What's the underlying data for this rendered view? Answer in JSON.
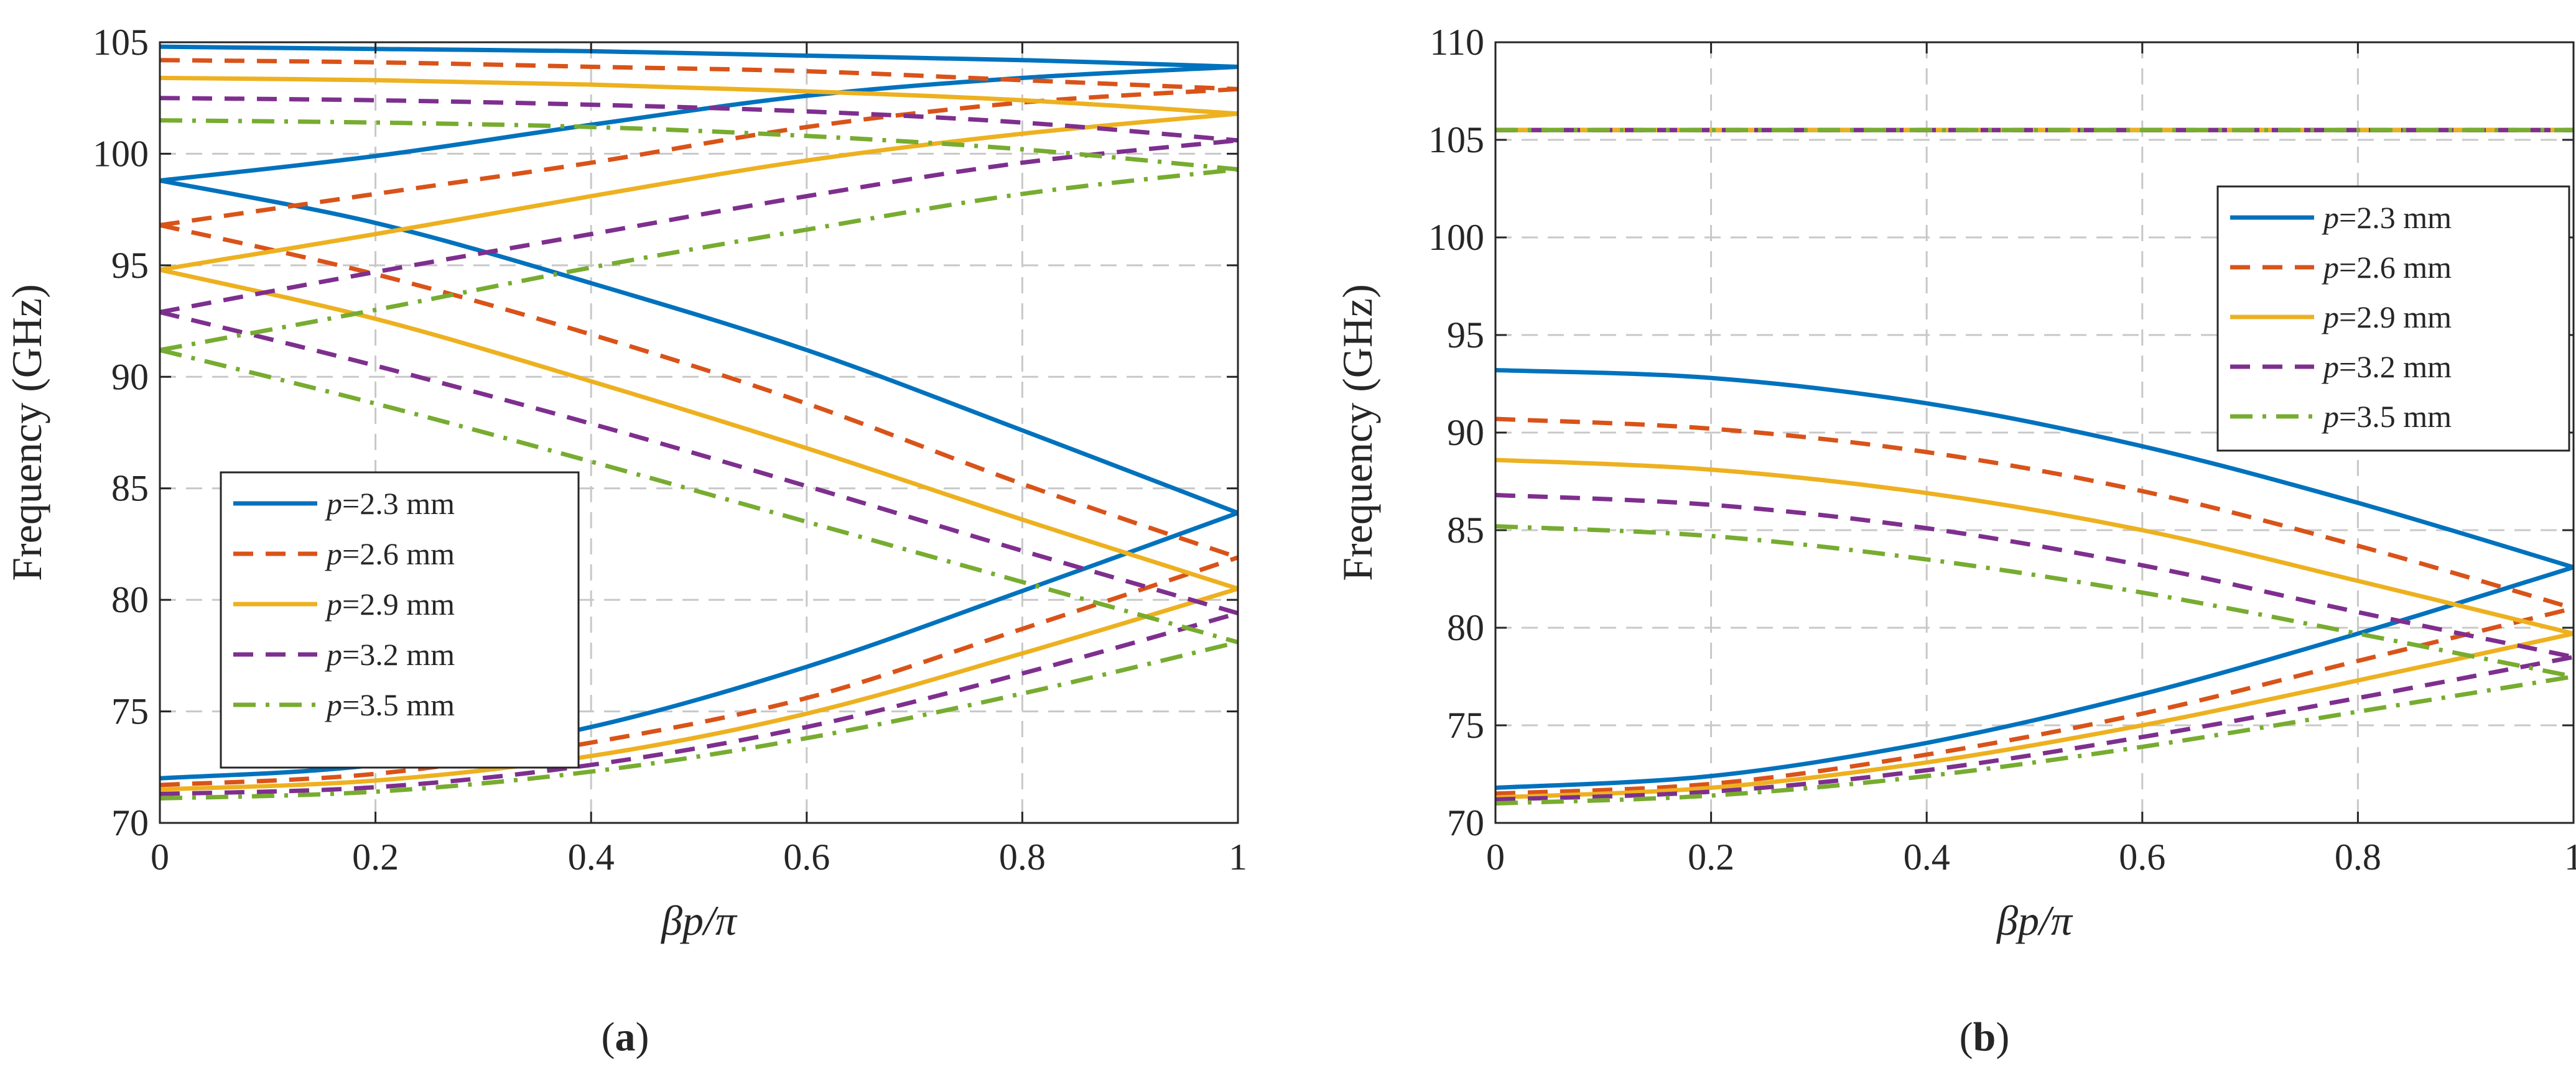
{
  "chart_data": [
    {
      "type": "line",
      "panel": "a",
      "caption": "(a)",
      "xlabel": "βp/π",
      "ylabel": "Frequency (GHz)",
      "xlim": [
        0,
        1
      ],
      "ylim": [
        70,
        105
      ],
      "xticks": [
        0,
        0.2,
        0.4,
        0.6,
        0.8,
        1
      ],
      "xtick_labels": [
        "0",
        "0.2",
        "0.4",
        "0.6",
        "0.8",
        "1"
      ],
      "yticks": [
        70,
        75,
        80,
        85,
        90,
        95,
        100,
        105
      ],
      "ytick_labels": [
        "70",
        "75",
        "80",
        "85",
        "90",
        "95",
        "100",
        "105"
      ],
      "grid": true,
      "legend_position": "lower-left",
      "series": [
        {
          "name": "p=2.3 mm",
          "p_label": "p",
          "value_label": "=2.3 mm",
          "color": "#0072BD",
          "style": "solid",
          "bands": [
            {
              "x": [
                0,
                0.2,
                0.4,
                0.6,
                0.8,
                1
              ],
              "y": [
                72.0,
                72.6,
                74.3,
                77.0,
                80.4,
                83.9
              ]
            },
            {
              "x": [
                0,
                0.2,
                0.4,
                0.6,
                0.8,
                1
              ],
              "y": [
                98.8,
                96.9,
                94.2,
                91.2,
                87.6,
                83.9
              ]
            },
            {
              "x": [
                0,
                0.2,
                0.4,
                0.6,
                0.8,
                1
              ],
              "y": [
                98.8,
                99.9,
                101.3,
                102.6,
                103.4,
                103.9
              ]
            },
            {
              "x": [
                0,
                0.2,
                0.4,
                0.6,
                0.8,
                1
              ],
              "y": [
                104.8,
                104.7,
                104.6,
                104.4,
                104.2,
                103.9
              ]
            }
          ]
        },
        {
          "name": "p=2.6 mm",
          "p_label": "p",
          "value_label": "=2.6 mm",
          "color": "#D95319",
          "style": "dashed",
          "bands": [
            {
              "x": [
                0,
                0.2,
                0.4,
                0.6,
                0.8,
                1
              ],
              "y": [
                71.7,
                72.2,
                73.6,
                75.6,
                78.7,
                81.9
              ]
            },
            {
              "x": [
                0,
                0.2,
                0.4,
                0.6,
                0.8,
                1
              ],
              "y": [
                96.8,
                94.6,
                91.9,
                88.8,
                85.2,
                81.9
              ]
            },
            {
              "x": [
                0,
                0.2,
                0.4,
                0.6,
                0.8,
                1
              ],
              "y": [
                96.8,
                98.2,
                99.6,
                101.2,
                102.3,
                102.9
              ]
            },
            {
              "x": [
                0,
                0.2,
                0.4,
                0.6,
                0.8,
                1
              ],
              "y": [
                104.2,
                104.1,
                103.9,
                103.7,
                103.3,
                102.9
              ]
            }
          ]
        },
        {
          "name": "p=2.9 mm",
          "p_label": "p",
          "value_label": "=2.9 mm",
          "color": "#EDB120",
          "style": "solid",
          "bands": [
            {
              "x": [
                0,
                0.2,
                0.4,
                0.6,
                0.8,
                1
              ],
              "y": [
                71.5,
                71.9,
                73.0,
                74.9,
                77.6,
                80.5
              ]
            },
            {
              "x": [
                0,
                0.2,
                0.4,
                0.6,
                0.8,
                1
              ],
              "y": [
                94.8,
                92.6,
                89.8,
                86.8,
                83.6,
                80.5
              ]
            },
            {
              "x": [
                0,
                0.2,
                0.4,
                0.6,
                0.8,
                1
              ],
              "y": [
                94.8,
                96.4,
                98.1,
                99.7,
                100.9,
                101.8
              ]
            },
            {
              "x": [
                0,
                0.2,
                0.4,
                0.6,
                0.8,
                1
              ],
              "y": [
                103.4,
                103.3,
                103.1,
                102.8,
                102.4,
                101.8
              ]
            }
          ]
        },
        {
          "name": "p=3.2 mm",
          "p_label": "p",
          "value_label": "=3.2 mm",
          "color": "#7E2F8E",
          "style": "dashed",
          "bands": [
            {
              "x": [
                0,
                0.2,
                0.4,
                0.6,
                0.8,
                1
              ],
              "y": [
                71.3,
                71.6,
                72.6,
                74.3,
                76.7,
                79.4
              ]
            },
            {
              "x": [
                0,
                0.2,
                0.4,
                0.6,
                0.8,
                1
              ],
              "y": [
                92.9,
                90.5,
                87.9,
                85.1,
                82.2,
                79.4
              ]
            },
            {
              "x": [
                0,
                0.2,
                0.4,
                0.6,
                0.8,
                1
              ],
              "y": [
                92.9,
                94.7,
                96.4,
                98.1,
                99.6,
                100.6
              ]
            },
            {
              "x": [
                0,
                0.2,
                0.4,
                0.6,
                0.8,
                1
              ],
              "y": [
                102.5,
                102.4,
                102.2,
                101.9,
                101.4,
                100.6
              ]
            }
          ]
        },
        {
          "name": "p=3.5 mm",
          "p_label": "p",
          "value_label": "=3.5 mm",
          "color": "#77AC30",
          "style": "dashdot",
          "bands": [
            {
              "x": [
                0,
                0.2,
                0.4,
                0.6,
                0.8,
                1
              ],
              "y": [
                71.1,
                71.4,
                72.3,
                73.8,
                75.8,
                78.1
              ]
            },
            {
              "x": [
                0,
                0.2,
                0.4,
                0.6,
                0.8,
                1
              ],
              "y": [
                91.2,
                88.8,
                86.2,
                83.5,
                80.8,
                78.1
              ]
            },
            {
              "x": [
                0,
                0.2,
                0.4,
                0.6,
                0.8,
                1
              ],
              "y": [
                91.2,
                93.0,
                94.9,
                96.6,
                98.2,
                99.3
              ]
            },
            {
              "x": [
                0,
                0.2,
                0.4,
                0.6,
                0.8,
                1
              ],
              "y": [
                101.5,
                101.4,
                101.2,
                100.8,
                100.2,
                99.3
              ]
            }
          ]
        }
      ]
    },
    {
      "type": "line",
      "panel": "b",
      "caption": "(b)",
      "xlabel": "βp/π",
      "ylabel": "Frequency (GHz)",
      "xlim": [
        0,
        1
      ],
      "ylim": [
        70,
        110
      ],
      "xticks": [
        0,
        0.2,
        0.4,
        0.6,
        0.8,
        1
      ],
      "xtick_labels": [
        "0",
        "0.2",
        "0.4",
        "0.6",
        "0.8",
        "1"
      ],
      "yticks": [
        70,
        75,
        80,
        85,
        90,
        95,
        100,
        105,
        110
      ],
      "ytick_labels": [
        "70",
        "75",
        "80",
        "85",
        "90",
        "95",
        "100",
        "105",
        "110"
      ],
      "grid": true,
      "legend_position": "upper-right",
      "series": [
        {
          "name": "p=2.3 mm",
          "p_label": "p",
          "value_label": "=2.3 mm",
          "color": "#0072BD",
          "style": "solid",
          "bands": [
            {
              "x": [
                0,
                0.2,
                0.4,
                0.6,
                0.8,
                1
              ],
              "y": [
                71.8,
                72.4,
                74.1,
                76.6,
                79.7,
                83.1
              ]
            },
            {
              "x": [
                0,
                0.2,
                0.4,
                0.6,
                0.8,
                1
              ],
              "y": [
                93.2,
                92.8,
                91.5,
                89.3,
                86.4,
                83.1
              ]
            },
            {
              "x": [
                0,
                1
              ],
              "y": [
                105.5,
                105.5
              ]
            }
          ]
        },
        {
          "name": "p=2.6 mm",
          "p_label": "p",
          "value_label": "=2.6 mm",
          "color": "#D95319",
          "style": "dashed",
          "bands": [
            {
              "x": [
                0,
                0.2,
                0.4,
                0.6,
                0.8,
                1
              ],
              "y": [
                71.5,
                72.0,
                73.5,
                75.6,
                78.3,
                81.0
              ]
            },
            {
              "x": [
                0,
                0.2,
                0.4,
                0.6,
                0.8,
                1
              ],
              "y": [
                90.7,
                90.2,
                89.0,
                87.0,
                84.2,
                81.0
              ]
            },
            {
              "x": [
                0,
                1
              ],
              "y": [
                105.5,
                105.5
              ]
            }
          ]
        },
        {
          "name": "p=2.9 mm",
          "p_label": "p",
          "value_label": "=2.9 mm",
          "color": "#EDB120",
          "style": "solid",
          "bands": [
            {
              "x": [
                0,
                0.2,
                0.4,
                0.6,
                0.8,
                1
              ],
              "y": [
                71.3,
                71.8,
                73.1,
                75.0,
                77.3,
                79.7
              ]
            },
            {
              "x": [
                0,
                0.2,
                0.4,
                0.6,
                0.8,
                1
              ],
              "y": [
                88.6,
                88.1,
                86.9,
                85.0,
                82.4,
                79.7
              ]
            },
            {
              "x": [
                0,
                1
              ],
              "y": [
                105.5,
                105.5
              ]
            }
          ]
        },
        {
          "name": "p=3.2 mm",
          "p_label": "p",
          "value_label": "=3.2 mm",
          "color": "#7E2F8E",
          "style": "dashed",
          "bands": [
            {
              "x": [
                0,
                0.2,
                0.4,
                0.6,
                0.8,
                1
              ],
              "y": [
                71.2,
                71.6,
                72.7,
                74.4,
                76.4,
                78.5
              ]
            },
            {
              "x": [
                0,
                0.2,
                0.4,
                0.6,
                0.8,
                1
              ],
              "y": [
                86.8,
                86.3,
                85.1,
                83.2,
                80.8,
                78.5
              ]
            },
            {
              "x": [
                0,
                1
              ],
              "y": [
                105.5,
                105.5
              ]
            }
          ]
        },
        {
          "name": "p=3.5 mm",
          "p_label": "p",
          "value_label": "=3.5 mm",
          "color": "#77AC30",
          "style": "dashdot",
          "bands": [
            {
              "x": [
                0,
                0.2,
                0.4,
                0.6,
                0.8,
                1
              ],
              "y": [
                71.0,
                71.4,
                72.4,
                73.9,
                75.7,
                77.5
              ]
            },
            {
              "x": [
                0,
                0.2,
                0.4,
                0.6,
                0.8,
                1
              ],
              "y": [
                85.2,
                84.7,
                83.5,
                81.8,
                79.7,
                77.5
              ]
            },
            {
              "x": [
                0,
                1
              ],
              "y": [
                105.5,
                105.5
              ]
            }
          ]
        }
      ]
    }
  ]
}
